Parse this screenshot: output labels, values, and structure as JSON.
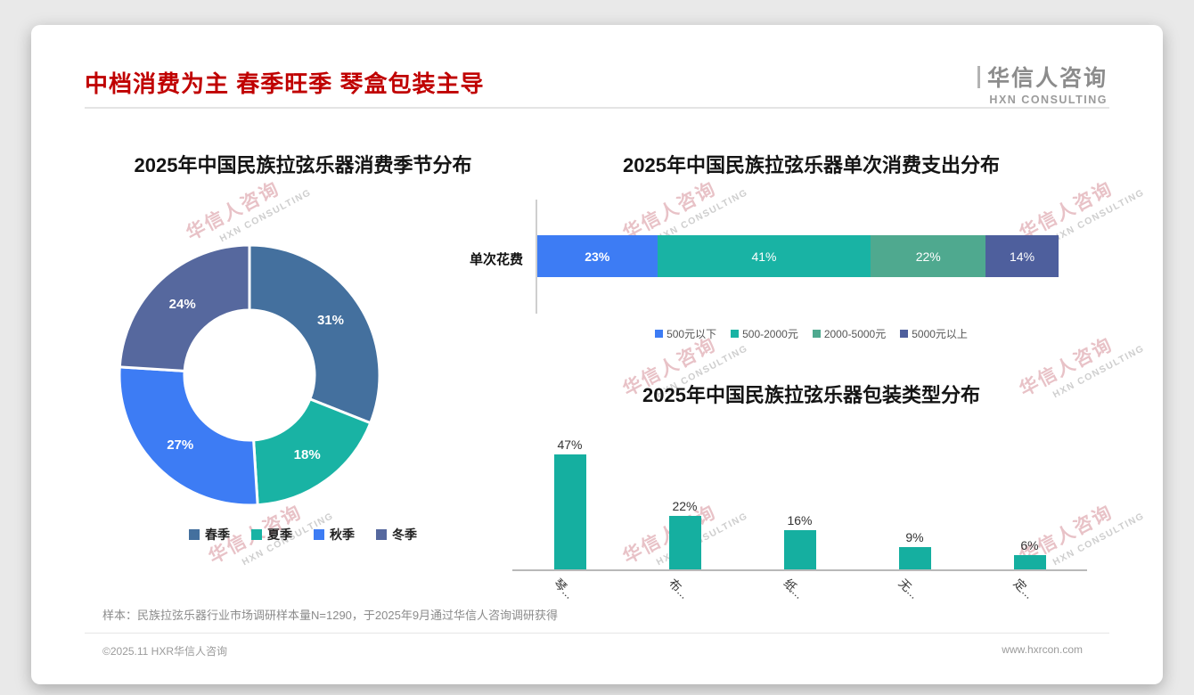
{
  "page": {
    "background": "#e9e9e9",
    "card_background": "#ffffff",
    "title_color": "#c00000"
  },
  "header": {
    "title": "中档消费为主 春季旺季 琴盒包装主导",
    "logo_name": "华信人咨询",
    "logo_subtitle": "HXN CONSULTING"
  },
  "watermark": {
    "line1": "华信人咨询",
    "line2": "HXN CONSULTING"
  },
  "chart_data": [
    {
      "type": "pie",
      "subtype": "donut",
      "title": "2025年中国民族拉弦乐器消费季节分布",
      "categories": [
        "春季",
        "夏季",
        "秋季",
        "冬季"
      ],
      "values": [
        31,
        18,
        27,
        24
      ],
      "colors": [
        "#44709E",
        "#19B3A4",
        "#3D7CF4",
        "#56689E"
      ],
      "label_format": "percent",
      "legend_position": "bottom"
    },
    {
      "type": "bar",
      "subtype": "horizontal-stacked",
      "title": "2025年中国民族拉弦乐器单次消费支出分布",
      "row_label": "单次花费",
      "categories": [
        "500元以下",
        "500-2000元",
        "2000-5000元",
        "5000元以上"
      ],
      "values": [
        23,
        41,
        22,
        14
      ],
      "colors": [
        "#3D7CF4",
        "#19B3A4",
        "#4FA98F",
        "#4E5F9D"
      ],
      "label_format": "percent",
      "legend_position": "bottom"
    },
    {
      "type": "bar",
      "title": "2025年中国民族拉弦乐器包装类型分布",
      "categories": [
        "琴...",
        "布...",
        "纸...",
        "无...",
        "定..."
      ],
      "values": [
        47,
        22,
        16,
        9,
        6
      ],
      "color": "#15AFA0",
      "ylim": [
        0,
        50
      ],
      "label_format": "percent",
      "xlabel_rotation": 45
    }
  ],
  "footer": {
    "note": "样本：民族拉弦乐器行业市场调研样本量N=1290，于2025年9月通过华信人咨询调研获得",
    "copyright": "©2025.11 HXR华信人咨询",
    "website": "www.hxrcon.com"
  }
}
